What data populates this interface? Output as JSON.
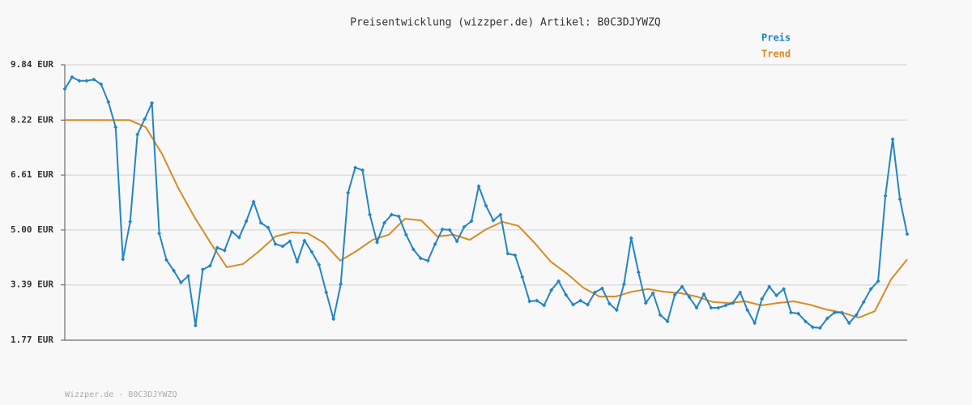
{
  "chart_data": {
    "type": "line",
    "title": "Preisentwicklung (wizzper.de) Artikel: B0C3DJYWZQ",
    "footer": "Wizzper.de - B0C3DJYWZQ",
    "ylim": [
      1.77,
      9.84
    ],
    "yticks": [
      {
        "value": 1.77,
        "label": "1.77 EUR"
      },
      {
        "value": 3.39,
        "label": "3.39 EUR"
      },
      {
        "value": 5.0,
        "label": "5.00 EUR"
      },
      {
        "value": 6.61,
        "label": "6.61 EUR"
      },
      {
        "value": 8.22,
        "label": "8.22 EUR"
      },
      {
        "value": 9.84,
        "label": "9.84 EUR"
      }
    ],
    "grid": true,
    "series": [
      {
        "name": "Preis",
        "color": "#2385c4",
        "markers": true,
        "values": [
          9.13,
          9.48,
          9.37,
          9.37,
          9.41,
          9.27,
          8.75,
          8.01,
          4.14,
          5.24,
          7.8,
          8.25,
          8.72,
          4.9,
          4.12,
          3.81,
          3.46,
          3.65,
          2.2,
          3.84,
          3.95,
          4.48,
          4.4,
          4.95,
          4.78,
          5.26,
          5.83,
          5.21,
          5.07,
          4.59,
          4.52,
          4.67,
          4.07,
          4.69,
          4.36,
          3.98,
          3.17,
          2.39,
          3.41,
          6.09,
          6.83,
          6.75,
          5.45,
          4.64,
          5.21,
          5.45,
          5.4,
          4.86,
          4.43,
          4.17,
          4.1,
          4.59,
          5.02,
          5.0,
          4.67,
          5.09,
          5.26,
          6.28,
          5.71,
          5.28,
          5.45,
          4.31,
          4.26,
          3.62,
          2.91,
          2.93,
          2.79,
          3.24,
          3.5,
          3.1,
          2.81,
          2.93,
          2.81,
          3.17,
          3.29,
          2.84,
          2.65,
          3.41,
          4.76,
          3.76,
          2.86,
          3.15,
          2.51,
          2.32,
          3.1,
          3.34,
          3.03,
          2.72,
          3.12,
          2.72,
          2.72,
          2.79,
          2.86,
          3.17,
          2.65,
          2.27,
          2.98,
          3.34,
          3.08,
          3.27,
          2.58,
          2.55,
          2.32,
          2.15,
          2.13,
          2.41,
          2.58,
          2.58,
          2.27,
          2.51,
          2.89,
          3.27,
          3.5,
          6.0,
          7.66,
          5.9,
          4.88
        ]
      },
      {
        "name": "Trend",
        "color": "#d98a24",
        "markers": false,
        "values": [
          8.22,
          8.22,
          8.22,
          8.22,
          8.22,
          8.01,
          7.23,
          6.23,
          5.38,
          4.62,
          3.91,
          4.0,
          4.38,
          4.81,
          4.93,
          4.9,
          4.62,
          4.1,
          4.38,
          4.71,
          4.86,
          5.33,
          5.28,
          4.81,
          4.86,
          4.71,
          5.02,
          5.24,
          5.12,
          4.62,
          4.07,
          3.72,
          3.31,
          3.05,
          3.05,
          3.19,
          3.27,
          3.19,
          3.15,
          3.05,
          2.89,
          2.86,
          2.91,
          2.79,
          2.86,
          2.91,
          2.81,
          2.67,
          2.58,
          2.43,
          2.62,
          3.55,
          4.14
        ]
      }
    ]
  }
}
